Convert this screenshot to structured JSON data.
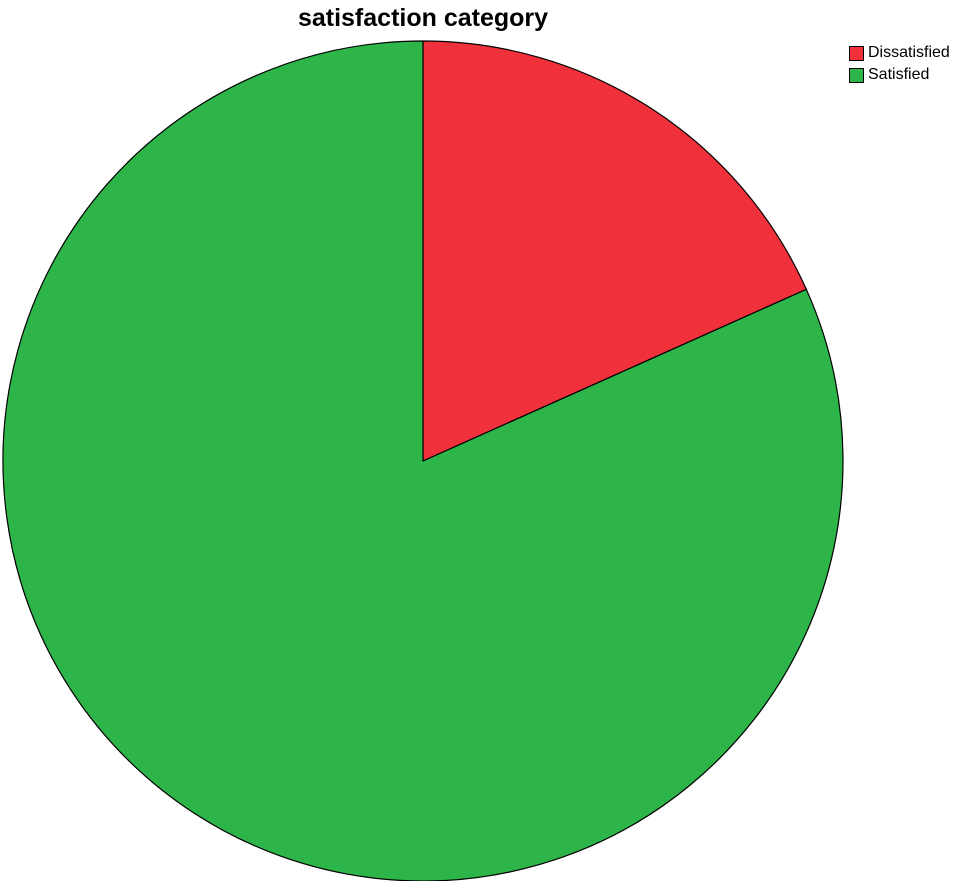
{
  "chart_data": {
    "type": "pie",
    "title": "satisfaction category",
    "categories": [
      "Dissatisfied",
      "Satisfied"
    ],
    "values": [
      18.3,
      81.7
    ],
    "colors": [
      "#f0313b",
      "#2db54a"
    ],
    "start_angle_deg": 0,
    "direction": "clockwise",
    "legend": {
      "placement": "top-right",
      "entries": [
        "Dissatisfied",
        "Satisfied"
      ]
    }
  }
}
